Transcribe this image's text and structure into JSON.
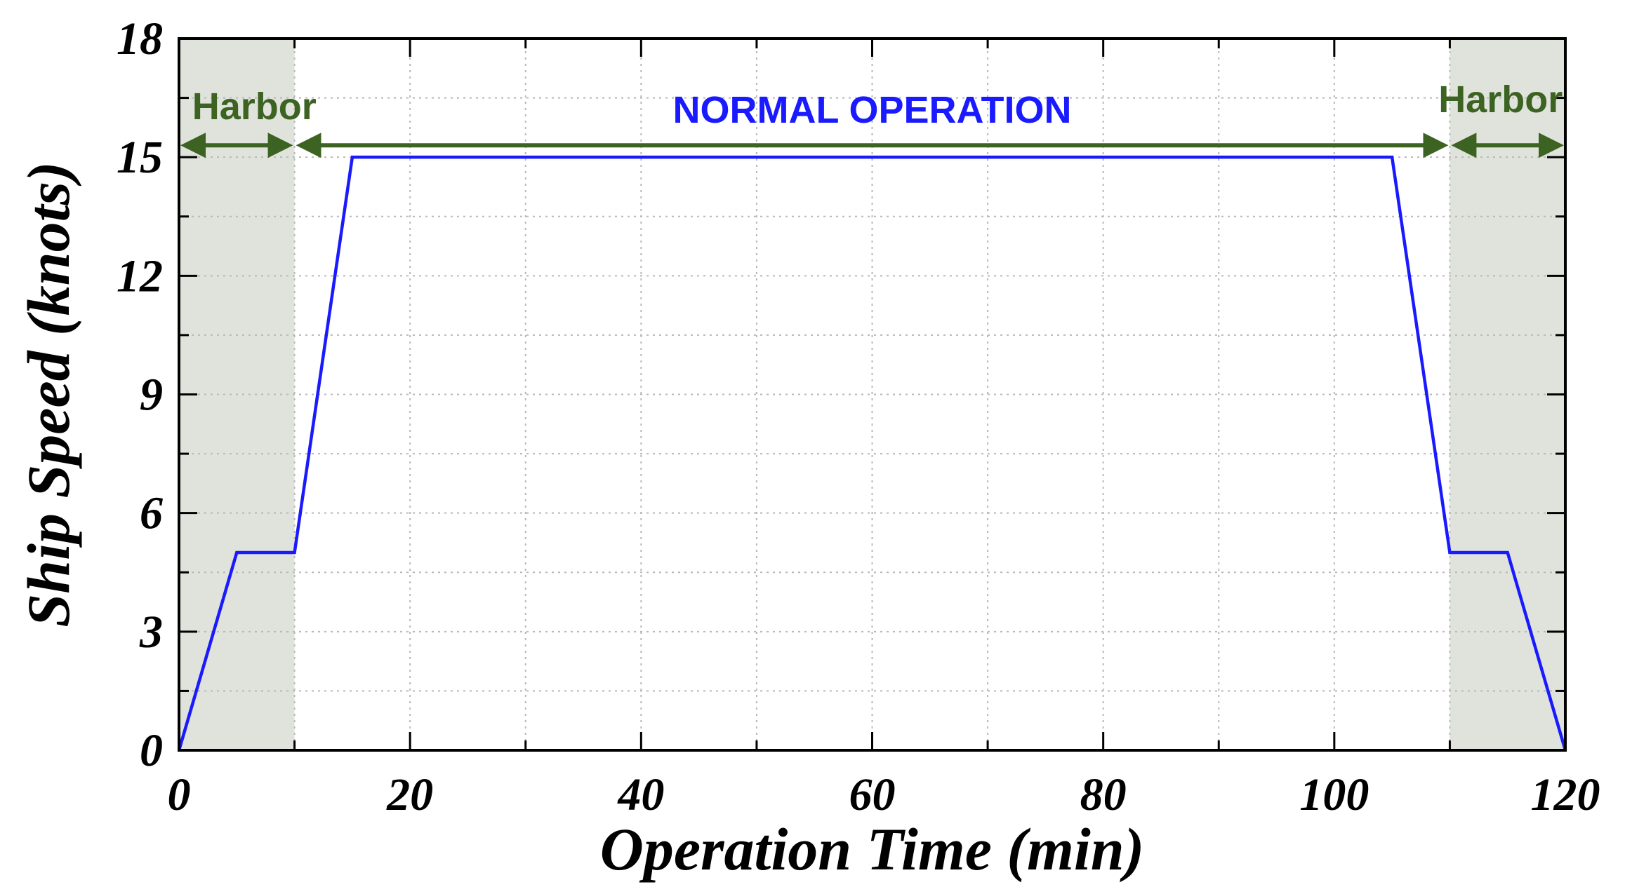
{
  "chart_data": {
    "type": "line",
    "xlabel": "Operation Time (min)",
    "ylabel": "Ship Speed (knots)",
    "xlim": [
      0,
      120
    ],
    "ylim": [
      0,
      18
    ],
    "xticks": [
      0,
      20,
      40,
      60,
      80,
      100,
      120
    ],
    "yticks": [
      0,
      3,
      6,
      9,
      12,
      15,
      18
    ],
    "grid": true,
    "series": [
      {
        "color": "#1a1aff",
        "x": [
          0,
          5,
          10,
          15,
          105,
          110,
          115,
          120
        ],
        "y": [
          0,
          5,
          5,
          15,
          15,
          5,
          5,
          0
        ]
      }
    ],
    "regions": [
      {
        "label": "Harbor",
        "x": [
          0,
          10
        ],
        "color": "#e0e3dc",
        "arrow_color": "#3d6322"
      },
      {
        "label": "NORMAL OPERATION",
        "x": [
          10,
          110
        ],
        "color": "#1a1aff",
        "arrow_color": "#3d6322"
      },
      {
        "label": "Harbor",
        "x": [
          110,
          120
        ],
        "color": "#e0e3dc",
        "arrow_color": "#3d6322"
      }
    ],
    "label_colors": {
      "harbor": "#3d6322",
      "normal": "#1a1aff"
    }
  }
}
